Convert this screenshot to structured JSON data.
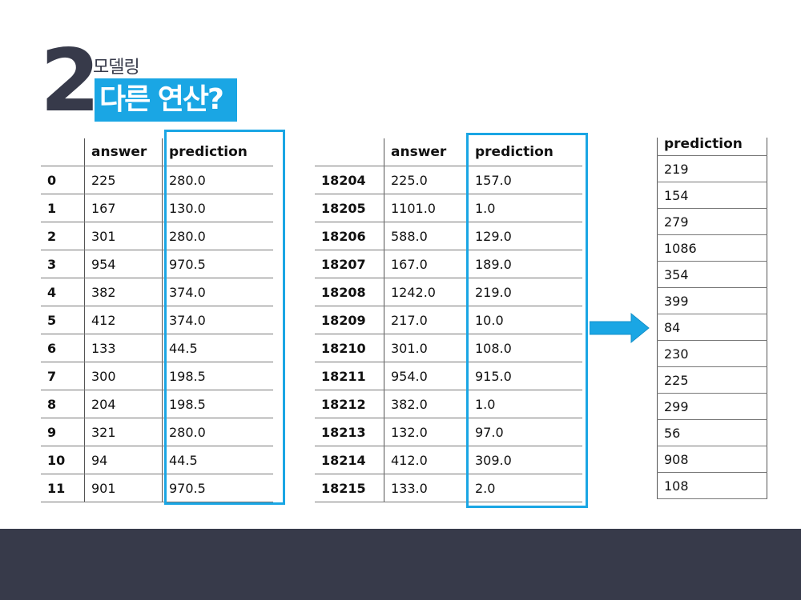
{
  "header": {
    "number": "2",
    "subtitle": "모델링",
    "title": "다른 연산?"
  },
  "colors": {
    "accent": "#1aa6e4",
    "dark": "#373a4a"
  },
  "table_left": {
    "columns": [
      "",
      "answer",
      "prediction"
    ],
    "rows": [
      [
        "0",
        "225",
        "280.0"
      ],
      [
        "1",
        "167",
        "130.0"
      ],
      [
        "2",
        "301",
        "280.0"
      ],
      [
        "3",
        "954",
        "970.5"
      ],
      [
        "4",
        "382",
        "374.0"
      ],
      [
        "5",
        "412",
        "374.0"
      ],
      [
        "6",
        "133",
        "44.5"
      ],
      [
        "7",
        "300",
        "198.5"
      ],
      [
        "8",
        "204",
        "198.5"
      ],
      [
        "9",
        "321",
        "280.0"
      ],
      [
        "10",
        "94",
        "44.5"
      ],
      [
        "11",
        "901",
        "970.5"
      ]
    ]
  },
  "table_middle": {
    "columns": [
      "",
      "answer",
      "prediction"
    ],
    "rows": [
      [
        "18204",
        "225.0",
        "157.0"
      ],
      [
        "18205",
        "1101.0",
        "1.0"
      ],
      [
        "18206",
        "588.0",
        "129.0"
      ],
      [
        "18207",
        "167.0",
        "189.0"
      ],
      [
        "18208",
        "1242.0",
        "219.0"
      ],
      [
        "18209",
        "217.0",
        "10.0"
      ],
      [
        "18210",
        "301.0",
        "108.0"
      ],
      [
        "18211",
        "954.0",
        "915.0"
      ],
      [
        "18212",
        "382.0",
        "1.0"
      ],
      [
        "18213",
        "132.0",
        "97.0"
      ],
      [
        "18214",
        "412.0",
        "309.0"
      ],
      [
        "18215",
        "133.0",
        "2.0"
      ]
    ]
  },
  "table_right": {
    "columns": [
      "prediction"
    ],
    "rows": [
      "219",
      "154",
      "279",
      "1086",
      "354",
      "399",
      "84",
      "230",
      "225",
      "299",
      "56",
      "908",
      "108"
    ]
  },
  "icons": {
    "arrow": "right-arrow-icon"
  }
}
